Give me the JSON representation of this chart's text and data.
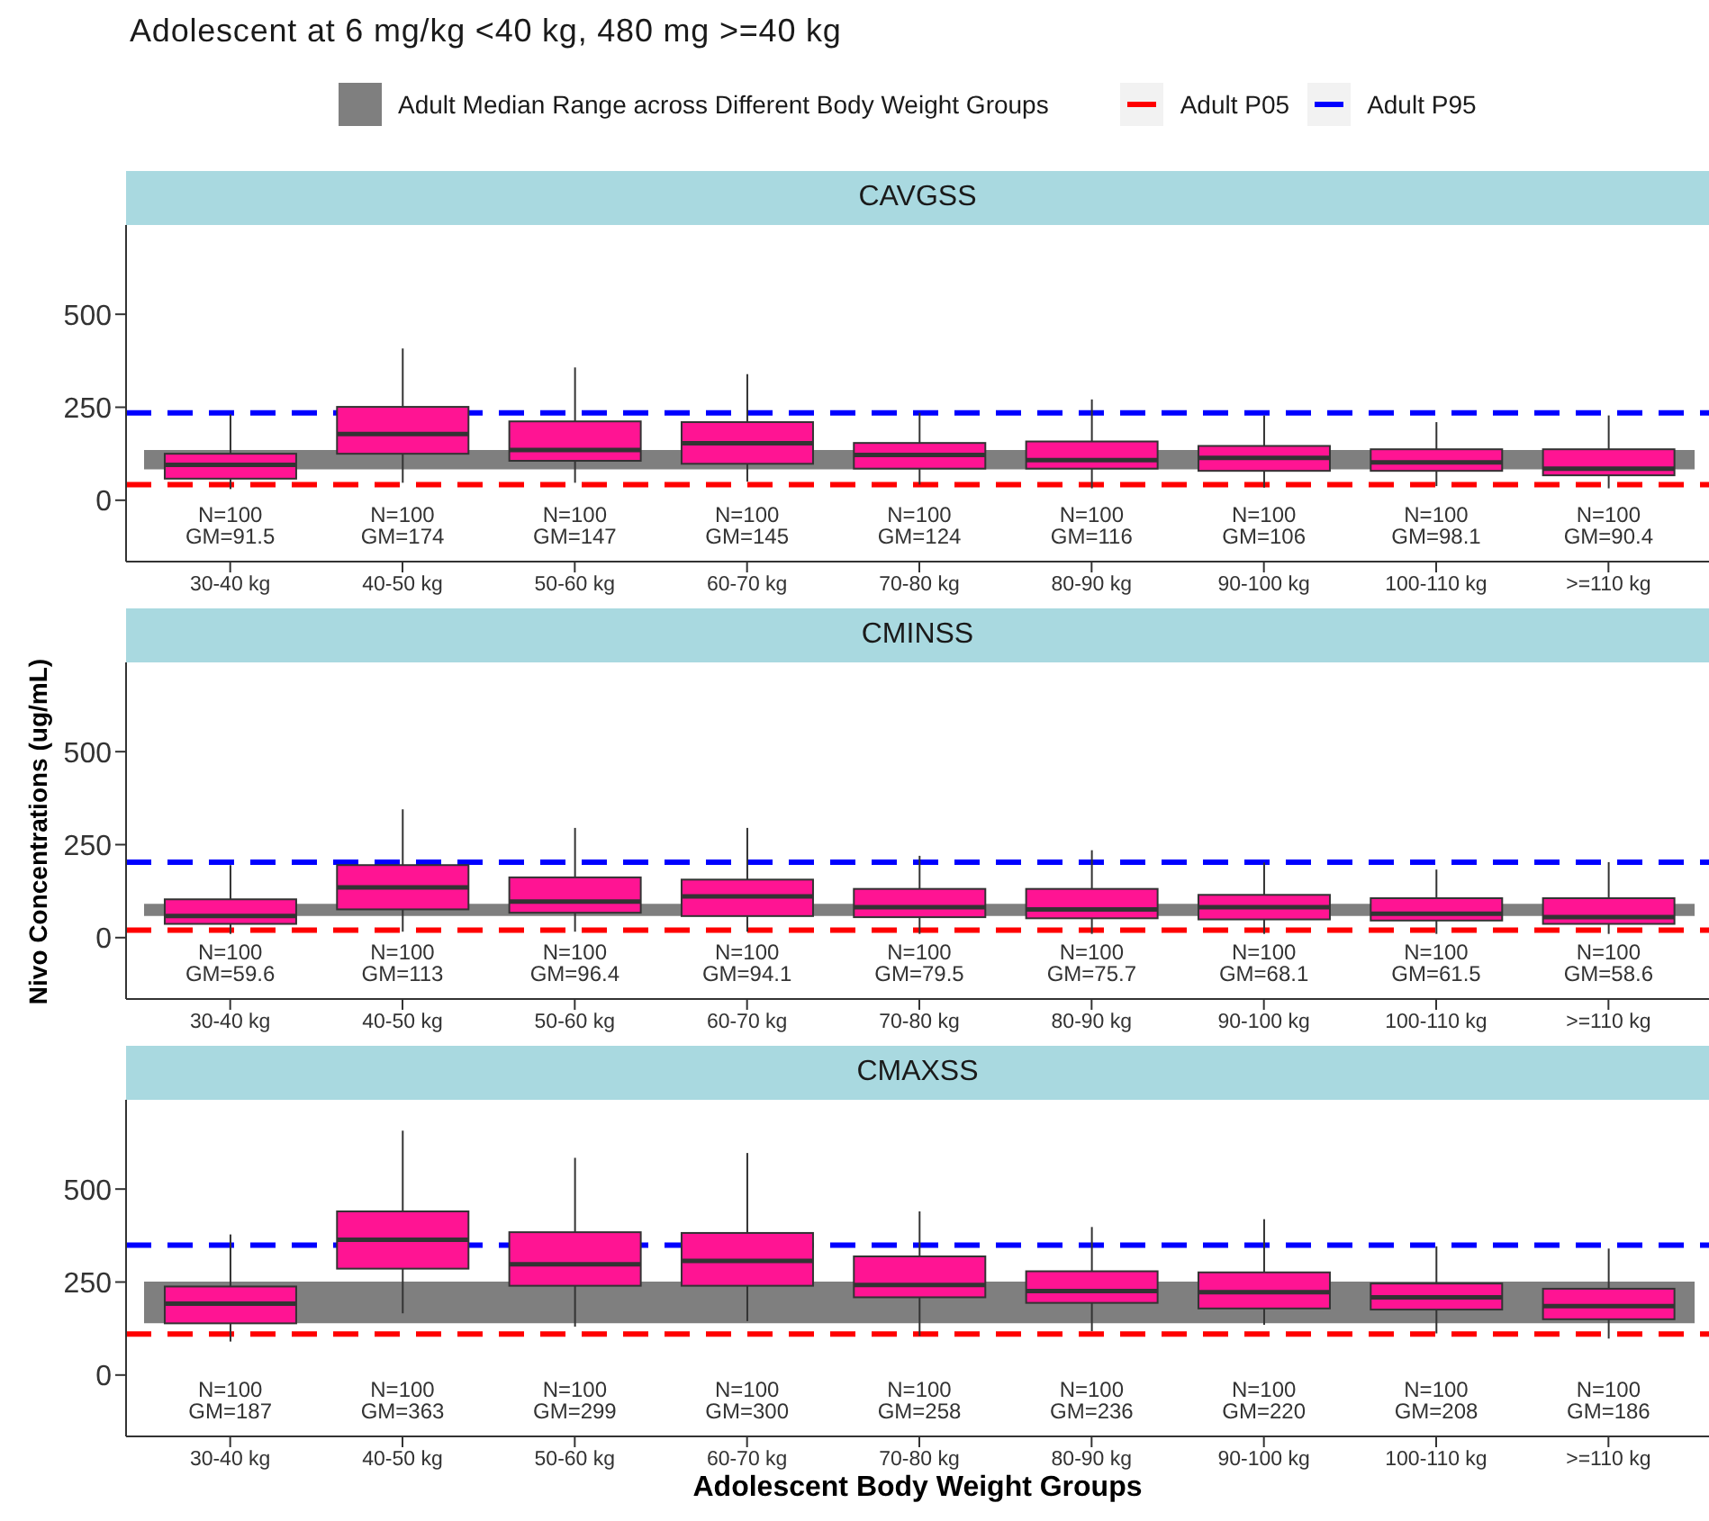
{
  "chart_data": [
    {
      "type": "box",
      "title": "Adolescent at 6 mg/kg <40 kg, 480 mg >=40 kg",
      "subtitle": "CAVGSS",
      "legend": "top",
      "categories": [
        "30-40 kg",
        "40-50 kg",
        "50-60 kg",
        "60-70 kg",
        "70-80 kg",
        "80-90 kg",
        "90-100 kg",
        "100-110 kg",
        ">=110 kg"
      ],
      "series": [
        {
          "color": "#ff1493",
          "boxes": [
            {
              "low": 30,
              "q1": 58,
              "median": 95,
              "q3": 125,
              "high": 231
            },
            {
              "low": 47,
              "q1": 125,
              "median": 178,
              "q3": 251,
              "high": 408
            },
            {
              "low": 47,
              "q1": 106,
              "median": 135,
              "q3": 212,
              "high": 357
            },
            {
              "low": 50,
              "q1": 98,
              "median": 153,
              "q3": 210,
              "high": 339
            },
            {
              "low": 42,
              "q1": 85,
              "median": 122,
              "q3": 154,
              "high": 235
            },
            {
              "low": 32,
              "q1": 85,
              "median": 108,
              "q3": 158,
              "high": 271
            },
            {
              "low": 34,
              "q1": 79,
              "median": 114,
              "q3": 146,
              "high": 228
            },
            {
              "low": 38,
              "q1": 79,
              "median": 102,
              "q3": 137,
              "high": 210
            },
            {
              "low": 32,
              "q1": 67,
              "median": 85,
              "q3": 137,
              "high": 228
            }
          ]
        }
      ],
      "ylim": [
        -165,
        740
      ],
      "yticks": [
        0,
        250,
        500
      ],
      "bands": [
        {
          "axis": "y",
          "from": 83,
          "to": 135,
          "label": "Adult Median Range across Different Body Weight Groups",
          "color": "#7f7f7f"
        }
      ],
      "ref_lines": [
        {
          "axis": "y",
          "value": 42,
          "label": "Adult P05",
          "color": "#ff0000",
          "line_style": "dashed"
        },
        {
          "axis": "y",
          "value": 235,
          "label": "Adult P95",
          "color": "#0000ff",
          "line_style": "dashed"
        }
      ],
      "annotations": [
        "N=100\nGM=91.5",
        "N=100\nGM=174",
        "N=100\nGM=147",
        "N=100\nGM=145",
        "N=100\nGM=124",
        "N=100\nGM=116",
        "N=100\nGM=106",
        "N=100\nGM=98.1",
        "N=100\nGM=90.4"
      ]
    },
    {
      "type": "box",
      "subtitle": "CMINSS",
      "ylabel": "Nivo Concentrations (ug/mL)",
      "categories": [
        "30-40 kg",
        "40-50 kg",
        "50-60 kg",
        "60-70 kg",
        "70-80 kg",
        "80-90 kg",
        "90-100 kg",
        "100-110 kg",
        ">=110 kg"
      ],
      "series": [
        {
          "color": "#ff1493",
          "boxes": [
            {
              "low": 10,
              "q1": 37,
              "median": 58,
              "q3": 103,
              "high": 195
            },
            {
              "low": 16,
              "q1": 76,
              "median": 135,
              "q3": 195,
              "high": 345
            },
            {
              "low": 16,
              "q1": 67,
              "median": 97,
              "q3": 162,
              "high": 295
            },
            {
              "low": 16,
              "q1": 58,
              "median": 111,
              "q3": 156,
              "high": 295
            },
            {
              "low": 10,
              "q1": 55,
              "median": 82,
              "q3": 131,
              "high": 220
            },
            {
              "low": 10,
              "q1": 52,
              "median": 76,
              "q3": 131,
              "high": 235
            },
            {
              "low": 10,
              "q1": 49,
              "median": 82,
              "q3": 115,
              "high": 202
            },
            {
              "low": 10,
              "q1": 46,
              "median": 64,
              "q3": 106,
              "high": 183
            },
            {
              "low": 10,
              "q1": 37,
              "median": 55,
              "q3": 106,
              "high": 203
            }
          ]
        }
      ],
      "ylim": [
        -165,
        740
      ],
      "yticks": [
        0,
        250,
        500
      ],
      "bands": [
        {
          "axis": "y",
          "from": 58,
          "to": 91,
          "color": "#7f7f7f"
        }
      ],
      "ref_lines": [
        {
          "axis": "y",
          "value": 20,
          "color": "#ff0000",
          "line_style": "dashed"
        },
        {
          "axis": "y",
          "value": 203,
          "color": "#0000ff",
          "line_style": "dashed"
        }
      ],
      "annotations": [
        "N=100\nGM=59.6",
        "N=100\nGM=113",
        "N=100\nGM=96.4",
        "N=100\nGM=94.1",
        "N=100\nGM=79.5",
        "N=100\nGM=75.7",
        "N=100\nGM=68.1",
        "N=100\nGM=61.5",
        "N=100\nGM=58.6"
      ]
    },
    {
      "type": "box",
      "subtitle": "CMAXSS",
      "xlabel": "Adolescent Body Weight Groups",
      "categories": [
        "30-40 kg",
        "40-50 kg",
        "50-60 kg",
        "60-70 kg",
        "70-80 kg",
        "80-90 kg",
        "90-100 kg",
        "100-110 kg",
        ">=110 kg"
      ],
      "series": [
        {
          "color": "#ff1493",
          "boxes": [
            {
              "low": 90,
              "q1": 139,
              "median": 192,
              "q3": 238,
              "high": 378
            },
            {
              "low": 166,
              "q1": 286,
              "median": 364,
              "q3": 440,
              "high": 657
            },
            {
              "low": 130,
              "q1": 240,
              "median": 298,
              "q3": 384,
              "high": 584
            },
            {
              "low": 145,
              "q1": 240,
              "median": 307,
              "q3": 382,
              "high": 597
            },
            {
              "low": 105,
              "q1": 209,
              "median": 242,
              "q3": 319,
              "high": 440
            },
            {
              "low": 118,
              "q1": 194,
              "median": 226,
              "q3": 279,
              "high": 398
            },
            {
              "low": 135,
              "q1": 179,
              "median": 223,
              "q3": 276,
              "high": 419
            },
            {
              "low": 112,
              "q1": 176,
              "median": 209,
              "q3": 246,
              "high": 346
            },
            {
              "low": 98,
              "q1": 150,
              "median": 185,
              "q3": 232,
              "high": 340
            }
          ]
        }
      ],
      "ylim": [
        -165,
        740
      ],
      "yticks": [
        0,
        250,
        500
      ],
      "bands": [
        {
          "axis": "y",
          "from": 139,
          "to": 251,
          "color": "#7f7f7f"
        }
      ],
      "ref_lines": [
        {
          "axis": "y",
          "value": 110,
          "color": "#ff0000",
          "line_style": "dashed"
        },
        {
          "axis": "y",
          "value": 349,
          "color": "#0000ff",
          "line_style": "dashed"
        }
      ],
      "annotations": [
        "N=100\nGM=187",
        "N=100\nGM=363",
        "N=100\nGM=299",
        "N=100\nGM=300",
        "N=100\nGM=258",
        "N=100\nGM=236",
        "N=100\nGM=220",
        "N=100\nGM=208",
        "N=100\nGM=186"
      ]
    }
  ]
}
